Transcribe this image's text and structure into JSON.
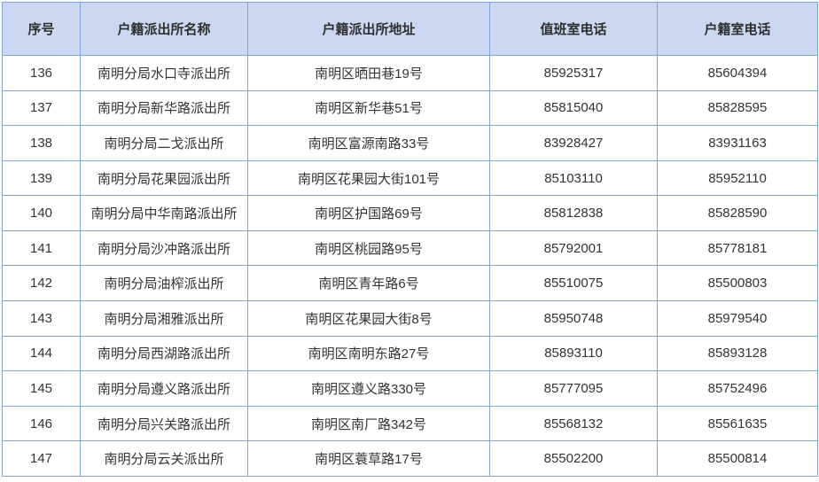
{
  "table": {
    "headers": [
      {
        "key": "index",
        "label": "序号"
      },
      {
        "key": "name",
        "label": "户籍派出所名称"
      },
      {
        "key": "address",
        "label": "户籍派出所地址"
      },
      {
        "key": "duty_phone",
        "label": "值班室电话"
      },
      {
        "key": "registry_phone",
        "label": "户籍室电话"
      }
    ],
    "rows": [
      {
        "index": "136",
        "name": "南明分局水口寺派出所",
        "address": "南明区晒田巷19号",
        "duty_phone": "85925317",
        "registry_phone": "85604394"
      },
      {
        "index": "137",
        "name": "南明分局新华路派出所",
        "address": "南明区新华巷51号",
        "duty_phone": "85815040",
        "registry_phone": "85828595"
      },
      {
        "index": "138",
        "name": "南明分局二戈派出所",
        "address": "南明区富源南路33号",
        "duty_phone": "83928427",
        "registry_phone": "83931163"
      },
      {
        "index": "139",
        "name": "南明分局花果园派出所",
        "address": "南明区花果园大街101号",
        "duty_phone": "85103110",
        "registry_phone": "85952110"
      },
      {
        "index": "140",
        "name": "南明分局中华南路派出所",
        "address": "南明区护国路69号",
        "duty_phone": "85812838",
        "registry_phone": "85828590"
      },
      {
        "index": "141",
        "name": "南明分局沙冲路派出所",
        "address": "南明区桃园路95号",
        "duty_phone": "85792001",
        "registry_phone": "85778181"
      },
      {
        "index": "142",
        "name": "南明分局油榨派出所",
        "address": "南明区青年路6号",
        "duty_phone": "85510075",
        "registry_phone": "85500803"
      },
      {
        "index": "143",
        "name": "南明分局湘雅派出所",
        "address": "南明区花果园大街8号",
        "duty_phone": "85950748",
        "registry_phone": "85979540"
      },
      {
        "index": "144",
        "name": "南明分局西湖路派出所",
        "address": "南明区南明东路27号",
        "duty_phone": "85893110",
        "registry_phone": "85893128"
      },
      {
        "index": "145",
        "name": "南明分局遵义路派出所",
        "address": "南明区遵义路330号",
        "duty_phone": "85777095",
        "registry_phone": "85752496"
      },
      {
        "index": "146",
        "name": "南明分局兴关路派出所",
        "address": "南明区南厂路342号",
        "duty_phone": "85568132",
        "registry_phone": "85561635"
      },
      {
        "index": "147",
        "name": "南明分局云关派出所",
        "address": "南明区蓑草路17号",
        "duty_phone": "85502200",
        "registry_phone": "85500814"
      }
    ],
    "colors": {
      "header_bg": "#ccd8f2",
      "border": "#7fa5de",
      "text": "#333333"
    }
  }
}
